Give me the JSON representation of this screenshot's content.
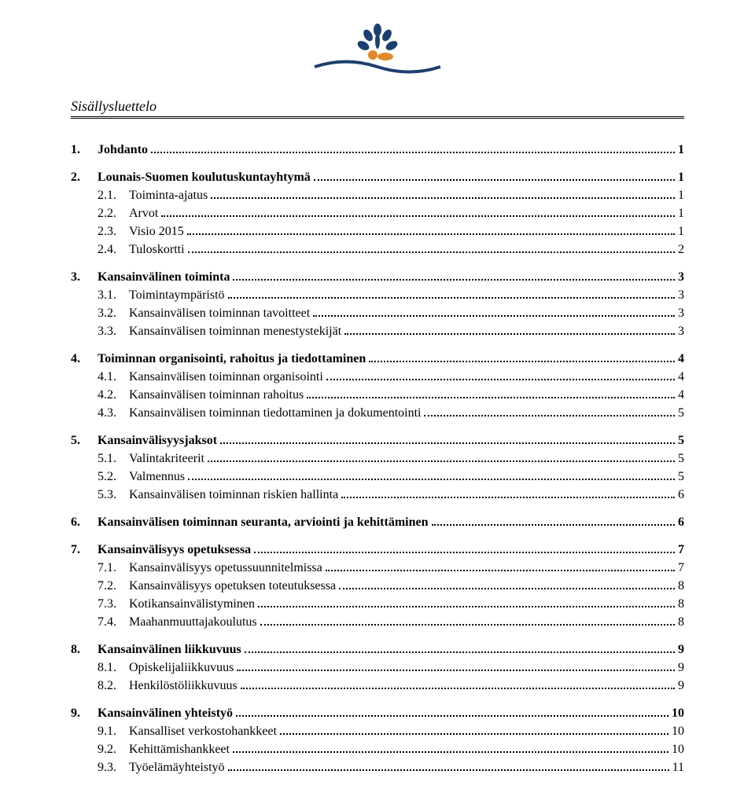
{
  "header_title": "Sisällysluettelo",
  "logo": {
    "tree_dark": "#1d3f6e",
    "tree_orange": "#e08a2e",
    "wave": "#1d3f6e"
  },
  "toc": [
    {
      "level": 1,
      "num": "1.",
      "title": "Johdanto",
      "page": "1"
    },
    {
      "level": 1,
      "num": "2.",
      "title": "Lounais-Suomen koulutuskuntayhtymä",
      "page": "1"
    },
    {
      "level": 2,
      "num": "2.1.",
      "title": "Toiminta-ajatus",
      "page": "1"
    },
    {
      "level": 2,
      "num": "2.2.",
      "title": "Arvot",
      "page": "1"
    },
    {
      "level": 2,
      "num": "2.3.",
      "title": "Visio 2015",
      "page": "1"
    },
    {
      "level": 2,
      "num": "2.4.",
      "title": "Tuloskortti",
      "page": "2"
    },
    {
      "level": 1,
      "num": "3.",
      "title": "Kansainvälinen toiminta",
      "page": "3"
    },
    {
      "level": 2,
      "num": "3.1.",
      "title": "Toimintaympäristö",
      "page": "3"
    },
    {
      "level": 2,
      "num": "3.2.",
      "title": "Kansainvälisen toiminnan tavoitteet",
      "page": "3"
    },
    {
      "level": 2,
      "num": "3.3.",
      "title": "Kansainvälisen toiminnan menestystekijät",
      "page": "3"
    },
    {
      "level": 1,
      "num": "4.",
      "title": "Toiminnan organisointi, rahoitus ja tiedottaminen",
      "page": "4"
    },
    {
      "level": 2,
      "num": "4.1.",
      "title": "Kansainvälisen toiminnan organisointi",
      "page": "4"
    },
    {
      "level": 2,
      "num": "4.2.",
      "title": "Kansainvälisen toiminnan rahoitus",
      "page": "4"
    },
    {
      "level": 2,
      "num": "4.3.",
      "title": "Kansainvälisen toiminnan tiedottaminen ja dokumentointi",
      "page": "5"
    },
    {
      "level": 1,
      "num": "5.",
      "title": "Kansainvälisyysjaksot",
      "page": "5"
    },
    {
      "level": 2,
      "num": "5.1.",
      "title": "Valintakriteerit",
      "page": "5"
    },
    {
      "level": 2,
      "num": "5.2.",
      "title": "Valmennus",
      "page": "5"
    },
    {
      "level": 2,
      "num": "5.3.",
      "title": "Kansainvälisen toiminnan riskien hallinta",
      "page": "6"
    },
    {
      "level": 1,
      "num": "6.",
      "title": "Kansainvälisen toiminnan seuranta, arviointi ja kehittäminen",
      "page": "6"
    },
    {
      "level": 1,
      "num": "7.",
      "title": "Kansainvälisyys opetuksessa",
      "page": "7"
    },
    {
      "level": 2,
      "num": "7.1.",
      "title": "Kansainvälisyys opetussuunnitelmissa",
      "page": "7"
    },
    {
      "level": 2,
      "num": "7.2.",
      "title": "Kansainvälisyys opetuksen toteutuksessa",
      "page": "8"
    },
    {
      "level": 2,
      "num": "7.3.",
      "title": "Kotikansainvälistyminen",
      "page": "8"
    },
    {
      "level": 2,
      "num": "7.4.",
      "title": "Maahanmuuttajakoulutus",
      "page": "8"
    },
    {
      "level": 1,
      "num": "8.",
      "title": "Kansainvälinen liikkuvuus",
      "page": "9"
    },
    {
      "level": 2,
      "num": "8.1.",
      "title": "Opiskelijaliikkuvuus",
      "page": "9"
    },
    {
      "level": 2,
      "num": "8.2.",
      "title": "Henkilöstöliikkuvuus",
      "page": "9"
    },
    {
      "level": 1,
      "num": "9.",
      "title": "Kansainvälinen yhteistyö",
      "page": "10"
    },
    {
      "level": 2,
      "num": "9.1.",
      "title": "Kansalliset verkostohankkeet",
      "page": "10"
    },
    {
      "level": 2,
      "num": "9.2.",
      "title": "Kehittämishankkeet",
      "page": "10"
    },
    {
      "level": 2,
      "num": "9.3.",
      "title": "Työelämäyhteistyö",
      "page": "11"
    }
  ]
}
